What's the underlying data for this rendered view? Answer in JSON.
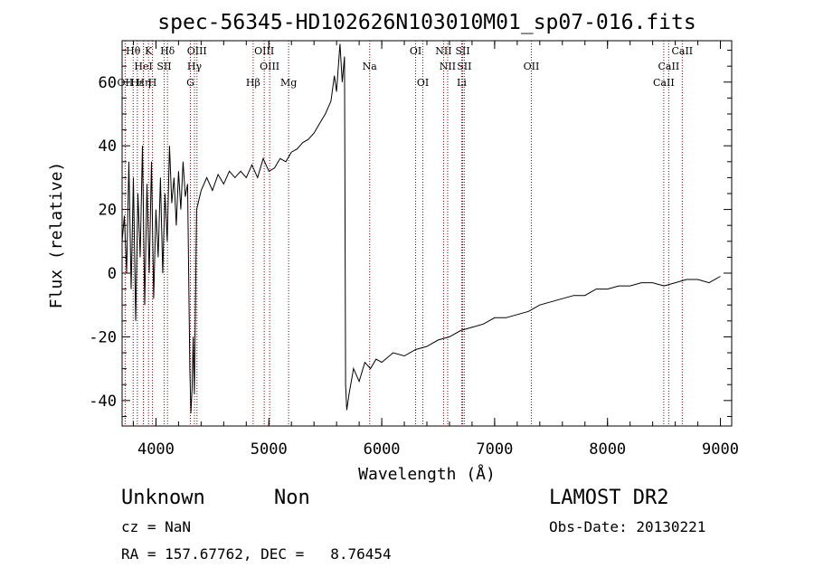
{
  "chart_data": {
    "type": "line",
    "title": "spec-56345-HD102626N103010M01_sp07-016.fits",
    "xlabel": "Wavelength (Å)",
    "ylabel": "Flux (relative)",
    "xlim": [
      3700,
      9100
    ],
    "ylim": [
      -48,
      73
    ],
    "xticks": [
      "4000",
      "5000",
      "6000",
      "7000",
      "8000",
      "9000"
    ],
    "yticks": [
      "-40",
      "-20",
      "0",
      "20",
      "40",
      "60"
    ],
    "grid": false,
    "line_color": "#000000",
    "marker_color": "#8b0000",
    "series": [
      {
        "points": [
          [
            3700,
            10
          ],
          [
            3720,
            18
          ],
          [
            3740,
            0
          ],
          [
            3760,
            35
          ],
          [
            3780,
            -5
          ],
          [
            3800,
            30
          ],
          [
            3820,
            -15
          ],
          [
            3840,
            25
          ],
          [
            3860,
            5
          ],
          [
            3880,
            40
          ],
          [
            3900,
            -10
          ],
          [
            3920,
            28
          ],
          [
            3940,
            0
          ],
          [
            3960,
            35
          ],
          [
            3980,
            -8
          ],
          [
            4000,
            20
          ],
          [
            4020,
            5
          ],
          [
            4040,
            30
          ],
          [
            4060,
            0
          ],
          [
            4080,
            25
          ],
          [
            4100,
            10
          ],
          [
            4120,
            40
          ],
          [
            4140,
            22
          ],
          [
            4160,
            30
          ],
          [
            4180,
            15
          ],
          [
            4200,
            32
          ],
          [
            4220,
            20
          ],
          [
            4240,
            35
          ],
          [
            4260,
            24
          ],
          [
            4280,
            28
          ],
          [
            4300,
            -30
          ],
          [
            4310,
            -44
          ],
          [
            4320,
            -36
          ],
          [
            4330,
            -20
          ],
          [
            4340,
            -38
          ],
          [
            4360,
            20
          ],
          [
            4400,
            26
          ],
          [
            4450,
            30
          ],
          [
            4500,
            26
          ],
          [
            4550,
            31
          ],
          [
            4600,
            28
          ],
          [
            4650,
            32
          ],
          [
            4700,
            30
          ],
          [
            4750,
            32
          ],
          [
            4800,
            30
          ],
          [
            4850,
            34
          ],
          [
            4900,
            30
          ],
          [
            4950,
            36
          ],
          [
            5000,
            32
          ],
          [
            5050,
            33
          ],
          [
            5100,
            36
          ],
          [
            5150,
            35
          ],
          [
            5200,
            38
          ],
          [
            5250,
            39
          ],
          [
            5300,
            41
          ],
          [
            5350,
            42
          ],
          [
            5400,
            44
          ],
          [
            5450,
            47
          ],
          [
            5500,
            50
          ],
          [
            5550,
            54
          ],
          [
            5580,
            62
          ],
          [
            5600,
            57
          ],
          [
            5630,
            72
          ],
          [
            5650,
            60
          ],
          [
            5670,
            68
          ],
          [
            5680,
            -35
          ],
          [
            5690,
            -43
          ],
          [
            5710,
            -38
          ],
          [
            5750,
            -30
          ],
          [
            5800,
            -34
          ],
          [
            5850,
            -28
          ],
          [
            5900,
            -30
          ],
          [
            5950,
            -27
          ],
          [
            6000,
            -28
          ],
          [
            6100,
            -25
          ],
          [
            6200,
            -26
          ],
          [
            6300,
            -24
          ],
          [
            6400,
            -23
          ],
          [
            6500,
            -21
          ],
          [
            6600,
            -20
          ],
          [
            6700,
            -18
          ],
          [
            6800,
            -17
          ],
          [
            6900,
            -16
          ],
          [
            7000,
            -14
          ],
          [
            7100,
            -14
          ],
          [
            7200,
            -13
          ],
          [
            7300,
            -12
          ],
          [
            7400,
            -10
          ],
          [
            7500,
            -9
          ],
          [
            7600,
            -8
          ],
          [
            7700,
            -7
          ],
          [
            7800,
            -7
          ],
          [
            7900,
            -5
          ],
          [
            8000,
            -5
          ],
          [
            8100,
            -4
          ],
          [
            8200,
            -4
          ],
          [
            8300,
            -3
          ],
          [
            8400,
            -3
          ],
          [
            8500,
            -4
          ],
          [
            8600,
            -3
          ],
          [
            8700,
            -2
          ],
          [
            8800,
            -2
          ],
          [
            8900,
            -3
          ],
          [
            9000,
            -1
          ]
        ]
      }
    ],
    "line_markers": [
      {
        "label": "Hθ",
        "wave": 3798,
        "row": 0
      },
      {
        "label": "K",
        "wave": 3934,
        "row": 0
      },
      {
        "label": "Hδ",
        "wave": 4102,
        "row": 0
      },
      {
        "label": "OIII",
        "wave": 4363,
        "row": 0
      },
      {
        "label": "OIII",
        "wave": 4959,
        "row": 0
      },
      {
        "label": "OI",
        "wave": 6300,
        "row": 0
      },
      {
        "label": "NII",
        "wave": 6548,
        "row": 0
      },
      {
        "label": "SII",
        "wave": 6717,
        "row": 0
      },
      {
        "label": "CaII",
        "wave": 8662,
        "row": 0
      },
      {
        "label": "HeI",
        "wave": 3889,
        "row": 1
      },
      {
        "label": "SII",
        "wave": 4072,
        "row": 1
      },
      {
        "label": "Hγ",
        "wave": 4341,
        "row": 1
      },
      {
        "label": "OIII",
        "wave": 5007,
        "row": 1
      },
      {
        "label": "Na",
        "wave": 5893,
        "row": 1
      },
      {
        "label": "NII",
        "wave": 6584,
        "row": 1
      },
      {
        "label": "SII",
        "wave": 6731,
        "row": 1
      },
      {
        "label": "OII",
        "wave": 7325,
        "row": 1
      },
      {
        "label": "CaII",
        "wave": 8542,
        "row": 1
      },
      {
        "label": "OII",
        "wave": 3727,
        "row": 2
      },
      {
        "label": "Hε",
        "wave": 3835,
        "row": 2
      },
      {
        "label": "Hη",
        "wave": 3889,
        "row": 2
      },
      {
        "label": "H",
        "wave": 3969,
        "row": 2
      },
      {
        "label": "G",
        "wave": 4305,
        "row": 2
      },
      {
        "label": "Hβ",
        "wave": 4861,
        "row": 2
      },
      {
        "label": "Mg",
        "wave": 5175,
        "row": 2
      },
      {
        "label": "OI",
        "wave": 6364,
        "row": 2
      },
      {
        "label": "Li",
        "wave": 6708,
        "row": 2
      },
      {
        "label": "CaII",
        "wave": 8498,
        "row": 2
      }
    ]
  },
  "info": {
    "object_class": "Unknown",
    "subclass": "Non",
    "cz": "cz = NaN",
    "coords": "RA = 157.67762, DEC =   8.76454",
    "survey": "LAMOST DR2",
    "obs_date": "Obs-Date: 20130221"
  }
}
